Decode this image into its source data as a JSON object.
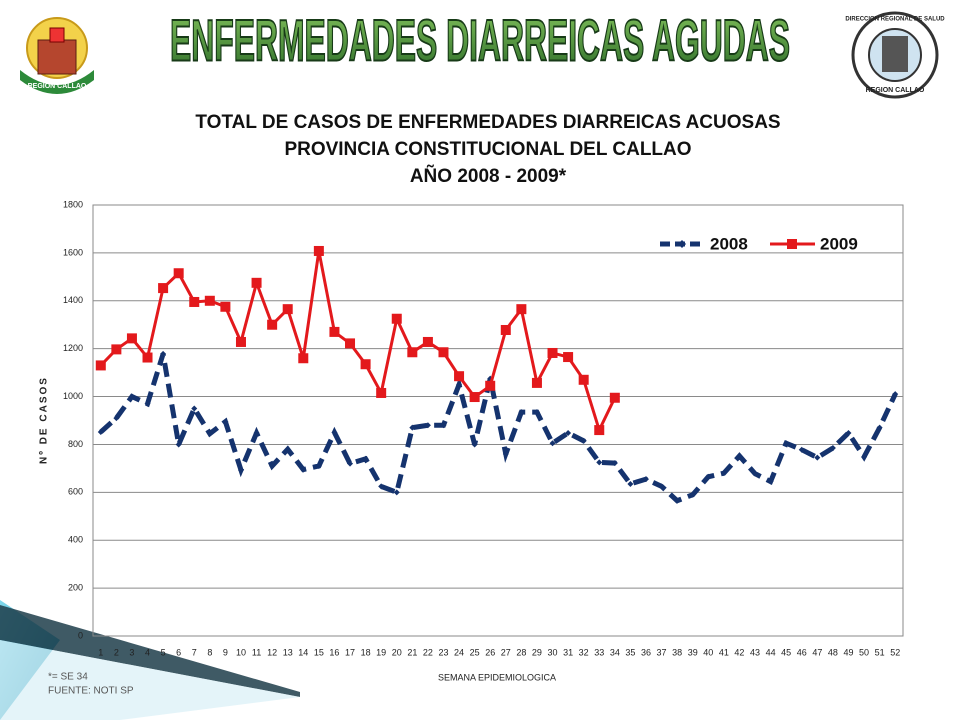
{
  "header": {
    "banner": "ENFERMEDADES  DIARREICAS  AGUDAS",
    "left_logo_text": "REGION CALLAO",
    "right_logo_text_top": "DIRECCION REGIONAL DE SALUD",
    "right_logo_text_bottom": "REGION CALLAO"
  },
  "chart_data": {
    "type": "line",
    "title": [
      "TOTAL DE CASOS DE ENFERMEDADES DIARREICAS ACUOSAS",
      "PROVINCIA CONSTITUCIONAL  DEL  CALLAO",
      "AÑO 2008 - 2009*"
    ],
    "x_label": "SEMANA EPIDEMIOLOGICA",
    "y_label": "Nº DE CASOS",
    "categories": [
      1,
      2,
      3,
      4,
      5,
      6,
      7,
      8,
      9,
      10,
      11,
      12,
      13,
      14,
      15,
      16,
      17,
      18,
      19,
      20,
      21,
      22,
      23,
      24,
      25,
      26,
      27,
      28,
      29,
      30,
      31,
      32,
      33,
      34,
      35,
      36,
      37,
      38,
      39,
      40,
      41,
      42,
      43,
      44,
      45,
      46,
      47,
      48,
      49,
      50,
      51,
      52
    ],
    "series": [
      {
        "name": "2008",
        "color": "#15336e",
        "line_style": "dashed",
        "marker": "diamond",
        "values": [
          852,
          910,
          1000,
          970,
          1178,
          800,
          950,
          845,
          895,
          693,
          848,
          710,
          780,
          695,
          710,
          850,
          720,
          740,
          625,
          600,
          870,
          880,
          880,
          1050,
          800,
          1075,
          760,
          935,
          935,
          805,
          848,
          815,
          725,
          722,
          635,
          655,
          625,
          565,
          590,
          665,
          680,
          752,
          678,
          645,
          805,
          778,
          745,
          785,
          848,
          748,
          870,
          1010
        ]
      },
      {
        "name": "2009",
        "color": "#e3191c",
        "line_style": "solid",
        "marker": "square",
        "values": [
          1130,
          1197,
          1243,
          1163,
          1453,
          1515,
          1395,
          1400,
          1375,
          1228,
          1475,
          1300,
          1365,
          1160,
          1608,
          1270,
          1222,
          1135,
          1015,
          1325,
          1185,
          1228,
          1185,
          1085,
          998,
          1045,
          1278,
          1365,
          1057,
          1182,
          1165,
          1070,
          860,
          995,
          null,
          null,
          null,
          null,
          null,
          null,
          null,
          null,
          null,
          null,
          null,
          null,
          null,
          null,
          null,
          null,
          null,
          null
        ]
      }
    ],
    "ylim": [
      0,
      1800
    ],
    "yticks": [
      0,
      200,
      400,
      600,
      800,
      1000,
      1200,
      1400,
      1600,
      1800
    ],
    "grid": true,
    "legend": "upper right"
  },
  "footnotes": [
    "*= SE 34",
    "FUENTE: NOTI SP"
  ]
}
